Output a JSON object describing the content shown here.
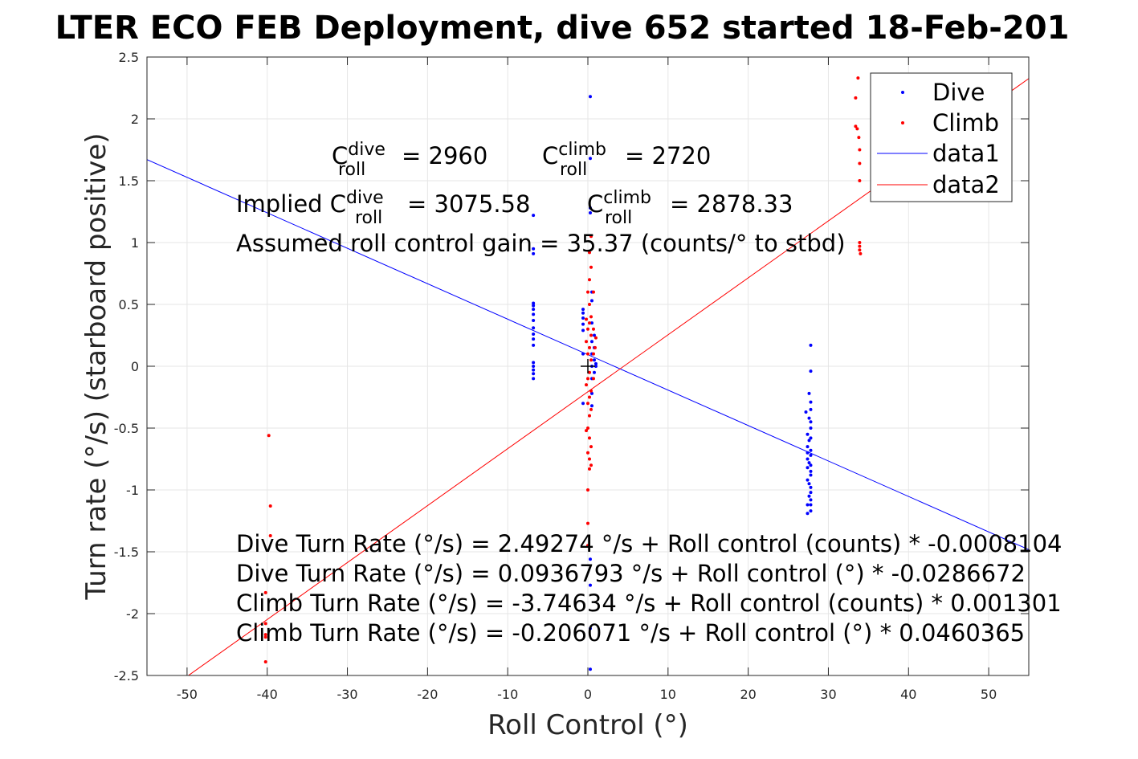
{
  "chart_data": {
    "type": "scatter",
    "title": "LTER ECO FEB Deployment, dive 652 started 18-Feb-201",
    "xlabel": "Roll Control (°)",
    "ylabel": "Turn rate (°/s) (starboard positive)",
    "xlim": [
      -55,
      55
    ],
    "ylim": [
      -2.5,
      2.5
    ],
    "xticks": [
      -50,
      -40,
      -30,
      -20,
      -10,
      0,
      10,
      20,
      30,
      40,
      50
    ],
    "yticks": [
      -2.5,
      -2,
      -1.5,
      -1,
      -0.5,
      0,
      0.5,
      1,
      1.5,
      2,
      2.5
    ],
    "grid": true,
    "legend_position": "top-right",
    "legend": [
      "Dive",
      "Climb",
      "data1",
      "data2"
    ],
    "colors": {
      "dive": "#0000ff",
      "climb": "#ff0000",
      "axis": "#262626",
      "grid": "#e6e6e6"
    },
    "series": [
      {
        "name": "Dive",
        "style": "points",
        "color": "#0000ff",
        "points": [
          [
            -6.8,
            1.22
          ],
          [
            -6.8,
            0.95
          ],
          [
            -6.8,
            0.91
          ],
          [
            -6.8,
            0.51
          ],
          [
            -6.8,
            0.49
          ],
          [
            -6.8,
            0.46
          ],
          [
            -6.8,
            0.42
          ],
          [
            -6.8,
            0.37
          ],
          [
            -6.8,
            0.31
          ],
          [
            -6.8,
            0.26
          ],
          [
            -6.8,
            0.22
          ],
          [
            -6.8,
            0.17
          ],
          [
            -6.8,
            0.03
          ],
          [
            -6.8,
            0.0
          ],
          [
            -6.8,
            -0.03
          ],
          [
            -6.8,
            -0.06
          ],
          [
            -6.8,
            -0.1
          ],
          [
            -0.6,
            0.46
          ],
          [
            -0.6,
            0.43
          ],
          [
            -0.6,
            0.39
          ],
          [
            -0.6,
            0.34
          ],
          [
            -0.6,
            0.29
          ],
          [
            -0.6,
            0.1
          ],
          [
            -0.6,
            -0.3
          ],
          [
            0.3,
            2.18
          ],
          [
            0.3,
            1.68
          ],
          [
            0.3,
            1.28
          ],
          [
            0.3,
            1.24
          ],
          [
            0.3,
            -1.56
          ],
          [
            0.3,
            -1.77
          ],
          [
            0.3,
            -2.12
          ],
          [
            0.3,
            -2.45
          ],
          [
            0.5,
            0.6
          ],
          [
            0.5,
            0.53
          ],
          [
            0.5,
            0.35
          ],
          [
            0.5,
            0.2
          ],
          [
            0.5,
            0.1
          ],
          [
            0.5,
            0.0
          ],
          [
            0.5,
            -0.1
          ],
          [
            0.5,
            -0.22
          ],
          [
            0.5,
            -0.32
          ],
          [
            0.8,
            0.25
          ],
          [
            0.8,
            0.15
          ],
          [
            0.8,
            0.05
          ],
          [
            0.8,
            -0.05
          ],
          [
            1.0,
            0.0
          ],
          [
            1.0,
            0.02
          ],
          [
            27.2,
            -0.37
          ],
          [
            27.4,
            -0.55
          ],
          [
            27.4,
            -0.65
          ],
          [
            27.4,
            -0.7
          ],
          [
            27.4,
            -0.75
          ],
          [
            27.4,
            -0.82
          ],
          [
            27.4,
            -0.92
          ],
          [
            27.4,
            -1.12
          ],
          [
            27.4,
            -1.19
          ],
          [
            27.6,
            -0.22
          ],
          [
            27.6,
            -0.42
          ],
          [
            27.6,
            -0.6
          ],
          [
            27.6,
            -0.78
          ],
          [
            27.6,
            -0.95
          ],
          [
            27.6,
            -1.05
          ],
          [
            27.8,
            0.17
          ],
          [
            27.8,
            -0.04
          ],
          [
            27.8,
            -0.29
          ],
          [
            27.8,
            -0.35
          ],
          [
            27.8,
            -0.45
          ],
          [
            27.8,
            -0.5
          ],
          [
            27.8,
            -0.58
          ],
          [
            27.8,
            -0.68
          ],
          [
            27.8,
            -0.72
          ],
          [
            27.8,
            -0.8
          ],
          [
            27.8,
            -0.85
          ],
          [
            27.8,
            -0.88
          ],
          [
            27.8,
            -0.98
          ],
          [
            27.8,
            -1.02
          ],
          [
            27.8,
            -1.08
          ],
          [
            27.8,
            -1.12
          ],
          [
            27.8,
            -1.17
          ]
        ]
      },
      {
        "name": "Climb",
        "style": "points",
        "color": "#ff0000",
        "points": [
          [
            -40.2,
            -1.83
          ],
          [
            -40.2,
            -2.08
          ],
          [
            -40.2,
            -2.17
          ],
          [
            -40.2,
            -2.19
          ],
          [
            -40.2,
            -2.39
          ],
          [
            -39.8,
            -0.56
          ],
          [
            -39.6,
            -1.13
          ],
          [
            -39.6,
            -1.37
          ],
          [
            -0.2,
            0.38
          ],
          [
            -0.2,
            0.2
          ],
          [
            -0.2,
            -0.15
          ],
          [
            -0.2,
            -0.52
          ],
          [
            0.0,
            0.6
          ],
          [
            0.0,
            0.3
          ],
          [
            0.0,
            0.1
          ],
          [
            0.0,
            -0.1
          ],
          [
            0.0,
            -0.3
          ],
          [
            0.0,
            -0.5
          ],
          [
            0.0,
            -0.7
          ],
          [
            0.0,
            -1.0
          ],
          [
            0.0,
            -1.27
          ],
          [
            0.0,
            -1.45
          ],
          [
            0.2,
            0.92
          ],
          [
            0.2,
            0.7
          ],
          [
            0.2,
            0.5
          ],
          [
            0.2,
            0.35
          ],
          [
            0.2,
            0.15
          ],
          [
            0.2,
            -0.05
          ],
          [
            0.2,
            -0.25
          ],
          [
            0.2,
            -0.4
          ],
          [
            0.2,
            -0.58
          ],
          [
            0.2,
            -0.75
          ],
          [
            0.2,
            -0.83
          ],
          [
            0.4,
            1.05
          ],
          [
            0.4,
            0.8
          ],
          [
            0.4,
            0.4
          ],
          [
            0.4,
            0.25
          ],
          [
            0.4,
            0.05
          ],
          [
            0.4,
            -0.2
          ],
          [
            0.4,
            -0.35
          ],
          [
            0.4,
            -0.65
          ],
          [
            0.4,
            -0.8
          ],
          [
            0.7,
            0.6
          ],
          [
            0.7,
            0.3
          ],
          [
            0.7,
            0.1
          ],
          [
            0.7,
            -0.1
          ],
          [
            0.9,
            0.15
          ],
          [
            1.0,
            0.23
          ],
          [
            33.4,
            2.17
          ],
          [
            33.4,
            1.94
          ],
          [
            33.6,
            1.92
          ],
          [
            33.7,
            2.33
          ],
          [
            33.8,
            1.85
          ],
          [
            33.9,
            1.75
          ],
          [
            33.9,
            1.64
          ],
          [
            33.9,
            1.5
          ],
          [
            33.9,
            1.0
          ],
          [
            33.9,
            0.97
          ],
          [
            33.9,
            0.94
          ],
          [
            34.0,
            0.91
          ]
        ]
      },
      {
        "name": "data1",
        "style": "line",
        "color": "#0000ff",
        "x": [
          -55,
          55
        ],
        "y": [
          1.6704,
          -1.4826
        ]
      },
      {
        "name": "data2",
        "style": "line",
        "color": "#ff0000",
        "x": [
          -55,
          55
        ],
        "y": [
          -2.7381,
          2.3259
        ]
      }
    ],
    "reference_marker": {
      "x": 0,
      "y": 0,
      "symbol": "+"
    },
    "annotations": {
      "coefficients": {
        "c": "C",
        "dive_sup": "dive",
        "roll_sub": "roll",
        "dive_value": "= 2960",
        "climb_sup": "climb",
        "climb_value": "= 2720"
      },
      "implied": {
        "prefix": "Implied ",
        "dive_value": "= 3075.58",
        "climb_value": "= 2878.33"
      },
      "gain": "Assumed roll control gain = 35.37 (counts/° to stbd)",
      "fits": [
        "Dive Turn Rate (°/s) = 2.49274 °/s + Roll control (counts) * -0.0008104",
        "Dive Turn Rate (°/s) = 0.0936793 °/s + Roll control (°) * -0.0286672",
        "Climb Turn Rate (°/s) = -3.74634 °/s + Roll control (counts) * 0.001301",
        "Climb Turn Rate (°/s) = -0.206071 °/s + Roll control (°) * 0.0460365"
      ]
    }
  }
}
